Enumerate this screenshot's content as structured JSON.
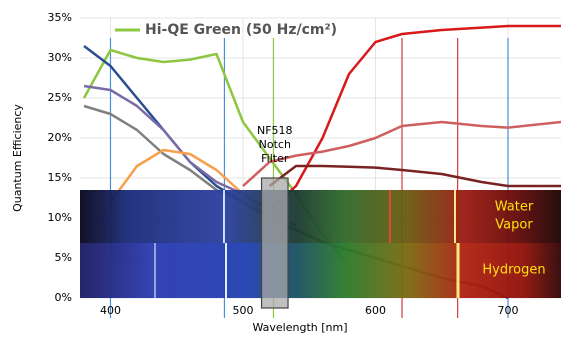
{
  "chart_data": {
    "type": "line",
    "x": [
      380,
      400,
      420,
      440,
      460,
      480,
      500,
      520,
      540,
      560,
      580,
      600,
      620,
      650,
      680,
      700,
      740
    ],
    "series": [
      {
        "name": "Hi-QE Green (50 Hz/cm²)",
        "color": "#8dc63f",
        "values": [
          25,
          31,
          30,
          29.5,
          29.8,
          30.5,
          22,
          17.5,
          13,
          8,
          4,
          null,
          null,
          null,
          null,
          null,
          null
        ]
      },
      {
        "color": "#2a4f8f",
        "values": [
          31.5,
          29,
          25,
          21,
          17,
          14,
          12,
          10,
          8.5,
          7,
          6,
          5,
          4,
          2.5,
          1.5,
          0,
          null
        ]
      },
      {
        "color": "#7a6aa8",
        "values": [
          26.5,
          26,
          24,
          21,
          17,
          14.5,
          13,
          11,
          9,
          null,
          null,
          null,
          null,
          null,
          null,
          null,
          null
        ]
      },
      {
        "color": "#808080",
        "values": [
          24,
          23,
          21,
          18,
          16,
          13.5,
          12,
          10,
          null,
          null,
          null,
          null,
          null,
          null,
          null,
          null,
          null
        ]
      },
      {
        "color": "#f7a04c",
        "values": [
          null,
          12,
          16.5,
          18.5,
          18,
          16,
          13,
          10,
          null,
          null,
          null,
          null,
          null,
          null,
          null,
          null,
          null
        ]
      },
      {
        "color": "#d7191c",
        "values": [
          null,
          null,
          null,
          null,
          null,
          null,
          null,
          11,
          14,
          20,
          28,
          32,
          33,
          33.5,
          33.8,
          34,
          34
        ]
      },
      {
        "color": "#cf5f5f",
        "values": [
          null,
          null,
          null,
          null,
          null,
          null,
          14,
          17,
          17.8,
          18.3,
          19,
          20,
          21.5,
          22,
          21.5,
          21.3,
          22
        ]
      },
      {
        "color": "#7a2222",
        "values": [
          null,
          null,
          null,
          null,
          null,
          null,
          null,
          14,
          16.5,
          16.5,
          16.4,
          16.3,
          16,
          15.5,
          14.5,
          14,
          14
        ]
      }
    ],
    "xlim": [
      377,
      740
    ],
    "xticks": [
      400,
      500,
      600,
      700
    ],
    "ylim": [
      0,
      35
    ],
    "yticks": [
      {
        "value": 0,
        "label": "0%"
      },
      {
        "value": 5,
        "label": "5%"
      },
      {
        "value": 10,
        "label": "10%"
      },
      {
        "value": 15,
        "label": "15%"
      },
      {
        "value": 20,
        "label": "20%"
      },
      {
        "value": 25,
        "label": "25%"
      },
      {
        "value": 30,
        "label": "30%"
      },
      {
        "value": 35,
        "label": "35%"
      }
    ],
    "grid": true,
    "xlabel": "Wavelength [nm]",
    "ylabel": "Quantum Efficiency",
    "markers": [
      {
        "x": 400,
        "color": "#4a90d9"
      },
      {
        "x": 486,
        "color": "#4a90d9"
      },
      {
        "x": 523,
        "color": "#8dc63f"
      },
      {
        "x": 620,
        "color": "#d33a3a"
      },
      {
        "x": 662,
        "color": "#d33a3a"
      },
      {
        "x": 700,
        "color": "#4a90d9"
      }
    ],
    "notch_filter": {
      "xrange": [
        514,
        534
      ],
      "label": [
        "NF518",
        "Notch",
        "Filter"
      ]
    },
    "band_labels": [
      [
        "Water",
        "Vapor"
      ],
      [
        "Hydrogen"
      ]
    ]
  }
}
